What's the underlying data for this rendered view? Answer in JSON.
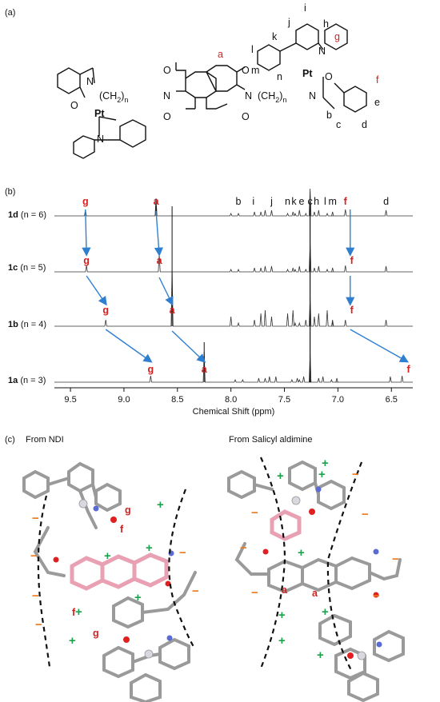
{
  "panel_labels": {
    "a": "(a)",
    "b": "(b)",
    "c": "(c)"
  },
  "structure": {
    "atoms": {
      "pt": "Pt",
      "n": "N",
      "o": "O"
    },
    "linker_left": "(CH",
    "linker_mid": "2",
    "linker_right": ")",
    "n_sub": "n",
    "proton_labels_black": [
      "b",
      "c",
      "d",
      "e",
      "h",
      "i",
      "j",
      "k",
      "l",
      "m",
      "n"
    ],
    "proton_labels_red": [
      "a",
      "f",
      "g"
    ]
  },
  "spectra": {
    "rows": [
      {
        "id": "1d",
        "n": "(n = 6)"
      },
      {
        "id": "1c",
        "n": "(n = 5)"
      },
      {
        "id": "1b",
        "n": "(n = 4)"
      },
      {
        "id": "1a",
        "n": "(n = 3)"
      }
    ],
    "top_assignments": [
      "g",
      "a",
      "b",
      "i",
      "j",
      "n",
      "k",
      "e",
      "c",
      "h",
      "l",
      "m",
      "f",
      "d"
    ],
    "x_ticks": [
      "9.5",
      "9.0",
      "8.5",
      "8.0",
      "7.5",
      "7.0",
      "6.5"
    ],
    "xlabel": "Chemical Shift (ppm)"
  },
  "chart_data": {
    "type": "line",
    "xlabel": "Chemical Shift (ppm)",
    "xlim": [
      9.65,
      6.3
    ],
    "series": [
      {
        "name": "1d (n = 6)",
        "peaks": {
          "g": 9.36,
          "a": 8.7,
          "f": 6.93
        }
      },
      {
        "name": "1c (n = 5)",
        "peaks": {
          "g": 9.35,
          "a": 8.67,
          "f": 6.93
        }
      },
      {
        "name": "1b (n = 4)",
        "peaks": {
          "g": 9.17,
          "a": 8.55,
          "f": 6.93
        }
      },
      {
        "name": "1a (n = 3)",
        "peaks": {
          "g": 8.75,
          "a": 8.25,
          "f": 6.4
        }
      }
    ]
  },
  "panel_c": {
    "left_title": "From NDI",
    "right_title": "From Salicyl aldimine",
    "plus": "+",
    "minus": "−"
  },
  "colors": {
    "red_label": "#d62020",
    "arrow": "#2f7fd1",
    "plus": "#1aa34a",
    "minus": "#f07a1a",
    "ndi_pink": "#f5b8c6"
  }
}
